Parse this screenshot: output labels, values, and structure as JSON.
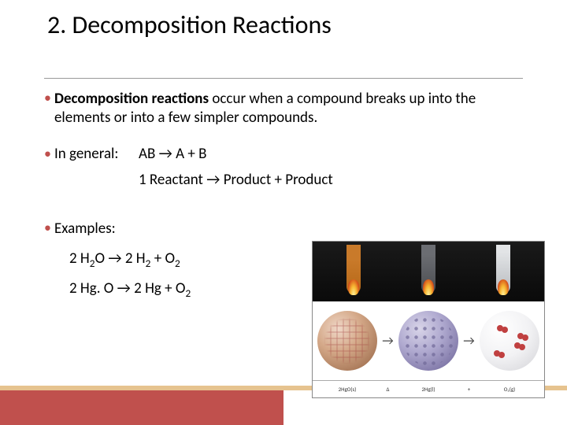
{
  "title": "2. Decomposition Reactions",
  "intro": {
    "bold_lead": "Decomposition reactions",
    "rest": " occur when a compound breaks up into the elements or into a few simpler compounds."
  },
  "general": {
    "label": "In general:",
    "eq1": "AB → A + B",
    "eq2": "1 Reactant → Product + Product"
  },
  "examples": {
    "label": "Examples:",
    "eq1_parts": [
      "2 H",
      "2",
      "O → 2 H",
      "2",
      " + O",
      "2"
    ],
    "eq2_parts": [
      "2 Hg. O → 2 Hg + O",
      "2"
    ]
  },
  "colors": {
    "bullet": "#c0504d",
    "footer_bar": "#c0504d",
    "footer_strip": "#e6c38f",
    "text": "#000000",
    "background": "#ffffff"
  },
  "diagram": {
    "arrow": "→",
    "bottom_labels": {
      "left": "2HgO(s)",
      "mid_arrow": "Δ",
      "center": "2Hg(l)",
      "plus": "+",
      "right": "O₂(g)"
    },
    "tube_colors": [
      "#c97a2a",
      "#6b6d72",
      "#e2e4e6"
    ],
    "sphere_colors": [
      "#d4a888",
      "#b0aad0",
      "#f2f2f4"
    ]
  }
}
